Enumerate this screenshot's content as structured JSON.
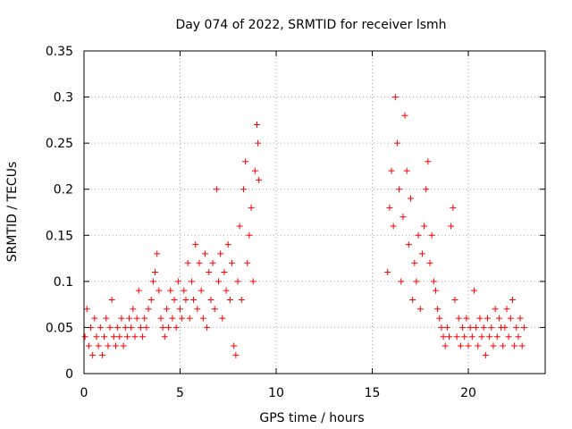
{
  "chart_data": {
    "type": "scatter",
    "title": "Day 074 of 2022, SRMTID for receiver lsmh",
    "xlabel": "GPS time / hours",
    "ylabel": "SRMTID / TECUs",
    "xlim": [
      0,
      24
    ],
    "ylim": [
      0,
      0.35
    ],
    "x_ticks": [
      0,
      5,
      10,
      15,
      20
    ],
    "x_tick_labels": [
      "0",
      "5",
      "10",
      "15",
      "20"
    ],
    "y_ticks": [
      0,
      0.05,
      0.1,
      0.15,
      0.2,
      0.25,
      0.3,
      0.35
    ],
    "y_tick_labels": [
      "0",
      "0.05",
      "0.1",
      "0.15",
      "0.2",
      "0.25",
      "0.3",
      "0.35"
    ],
    "grid": true,
    "marker": "plus",
    "color": "#ff0000",
    "series": [
      {
        "name": "SRMTID",
        "points": [
          [
            0.05,
            0.04
          ],
          [
            0.15,
            0.07
          ],
          [
            0.25,
            0.03
          ],
          [
            0.35,
            0.05
          ],
          [
            0.45,
            0.02
          ],
          [
            0.55,
            0.06
          ],
          [
            0.65,
            0.04
          ],
          [
            0.75,
            0.03
          ],
          [
            0.85,
            0.05
          ],
          [
            0.95,
            0.02
          ],
          [
            1.05,
            0.04
          ],
          [
            1.15,
            0.06
          ],
          [
            1.25,
            0.03
          ],
          [
            1.35,
            0.05
          ],
          [
            1.45,
            0.08
          ],
          [
            1.55,
            0.04
          ],
          [
            1.65,
            0.03
          ],
          [
            1.75,
            0.05
          ],
          [
            1.85,
            0.04
          ],
          [
            1.95,
            0.06
          ],
          [
            2.05,
            0.03
          ],
          [
            2.15,
            0.05
          ],
          [
            2.25,
            0.04
          ],
          [
            2.35,
            0.06
          ],
          [
            2.45,
            0.05
          ],
          [
            2.55,
            0.07
          ],
          [
            2.65,
            0.04
          ],
          [
            2.75,
            0.06
          ],
          [
            2.85,
            0.09
          ],
          [
            2.95,
            0.05
          ],
          [
            3.05,
            0.04
          ],
          [
            3.15,
            0.06
          ],
          [
            3.25,
            0.05
          ],
          [
            3.35,
            0.07
          ],
          [
            3.5,
            0.08
          ],
          [
            3.6,
            0.1
          ],
          [
            3.7,
            0.11
          ],
          [
            3.8,
            0.13
          ],
          [
            3.9,
            0.09
          ],
          [
            4.0,
            0.06
          ],
          [
            4.1,
            0.05
          ],
          [
            4.2,
            0.04
          ],
          [
            4.3,
            0.07
          ],
          [
            4.4,
            0.05
          ],
          [
            4.5,
            0.09
          ],
          [
            4.6,
            0.06
          ],
          [
            4.7,
            0.08
          ],
          [
            4.8,
            0.05
          ],
          [
            4.9,
            0.1
          ],
          [
            5.0,
            0.07
          ],
          [
            5.1,
            0.06
          ],
          [
            5.2,
            0.09
          ],
          [
            5.3,
            0.08
          ],
          [
            5.4,
            0.12
          ],
          [
            5.5,
            0.06
          ],
          [
            5.6,
            0.1
          ],
          [
            5.7,
            0.08
          ],
          [
            5.8,
            0.14
          ],
          [
            5.9,
            0.07
          ],
          [
            6.0,
            0.12
          ],
          [
            6.1,
            0.09
          ],
          [
            6.2,
            0.06
          ],
          [
            6.3,
            0.13
          ],
          [
            6.4,
            0.05
          ],
          [
            6.5,
            0.11
          ],
          [
            6.6,
            0.08
          ],
          [
            6.7,
            0.12
          ],
          [
            6.8,
            0.07
          ],
          [
            6.9,
            0.2
          ],
          [
            7.0,
            0.1
          ],
          [
            7.1,
            0.13
          ],
          [
            7.2,
            0.06
          ],
          [
            7.3,
            0.11
          ],
          [
            7.4,
            0.09
          ],
          [
            7.5,
            0.14
          ],
          [
            7.6,
            0.08
          ],
          [
            7.7,
            0.12
          ],
          [
            7.8,
            0.03
          ],
          [
            7.9,
            0.02
          ],
          [
            8.0,
            0.1
          ],
          [
            8.1,
            0.16
          ],
          [
            8.2,
            0.08
          ],
          [
            8.3,
            0.2
          ],
          [
            8.4,
            0.23
          ],
          [
            8.5,
            0.12
          ],
          [
            8.6,
            0.15
          ],
          [
            8.7,
            0.18
          ],
          [
            8.8,
            0.1
          ],
          [
            8.9,
            0.22
          ],
          [
            9.0,
            0.27
          ],
          [
            9.05,
            0.25
          ],
          [
            9.1,
            0.21
          ],
          [
            15.8,
            0.11
          ],
          [
            15.9,
            0.18
          ],
          [
            16.0,
            0.22
          ],
          [
            16.1,
            0.16
          ],
          [
            16.2,
            0.3
          ],
          [
            16.3,
            0.25
          ],
          [
            16.4,
            0.2
          ],
          [
            16.5,
            0.1
          ],
          [
            16.6,
            0.17
          ],
          [
            16.7,
            0.28
          ],
          [
            16.8,
            0.22
          ],
          [
            16.9,
            0.14
          ],
          [
            17.0,
            0.19
          ],
          [
            17.1,
            0.08
          ],
          [
            17.2,
            0.12
          ],
          [
            17.3,
            0.1
          ],
          [
            17.4,
            0.15
          ],
          [
            17.5,
            0.07
          ],
          [
            17.6,
            0.13
          ],
          [
            17.7,
            0.16
          ],
          [
            17.8,
            0.2
          ],
          [
            17.9,
            0.23
          ],
          [
            18.0,
            0.12
          ],
          [
            18.1,
            0.15
          ],
          [
            18.2,
            0.1
          ],
          [
            18.3,
            0.09
          ],
          [
            18.4,
            0.07
          ],
          [
            18.5,
            0.06
          ],
          [
            18.6,
            0.05
          ],
          [
            18.7,
            0.04
          ],
          [
            18.8,
            0.03
          ],
          [
            18.9,
            0.05
          ],
          [
            19.0,
            0.04
          ],
          [
            19.1,
            0.16
          ],
          [
            19.2,
            0.18
          ],
          [
            19.3,
            0.08
          ],
          [
            19.4,
            0.04
          ],
          [
            19.5,
            0.06
          ],
          [
            19.6,
            0.03
          ],
          [
            19.7,
            0.05
          ],
          [
            19.8,
            0.04
          ],
          [
            19.9,
            0.06
          ],
          [
            20.0,
            0.03
          ],
          [
            20.1,
            0.05
          ],
          [
            20.2,
            0.04
          ],
          [
            20.3,
            0.09
          ],
          [
            20.4,
            0.05
          ],
          [
            20.5,
            0.03
          ],
          [
            20.6,
            0.06
          ],
          [
            20.7,
            0.04
          ],
          [
            20.8,
            0.05
          ],
          [
            20.9,
            0.02
          ],
          [
            21.0,
            0.06
          ],
          [
            21.1,
            0.04
          ],
          [
            21.2,
            0.05
          ],
          [
            21.3,
            0.03
          ],
          [
            21.4,
            0.07
          ],
          [
            21.5,
            0.04
          ],
          [
            21.6,
            0.06
          ],
          [
            21.7,
            0.05
          ],
          [
            21.8,
            0.03
          ],
          [
            21.9,
            0.05
          ],
          [
            22.0,
            0.07
          ],
          [
            22.1,
            0.04
          ],
          [
            22.2,
            0.06
          ],
          [
            22.3,
            0.08
          ],
          [
            22.4,
            0.03
          ],
          [
            22.5,
            0.05
          ],
          [
            22.6,
            0.04
          ],
          [
            22.7,
            0.06
          ],
          [
            22.8,
            0.03
          ],
          [
            22.9,
            0.05
          ]
        ]
      }
    ]
  }
}
